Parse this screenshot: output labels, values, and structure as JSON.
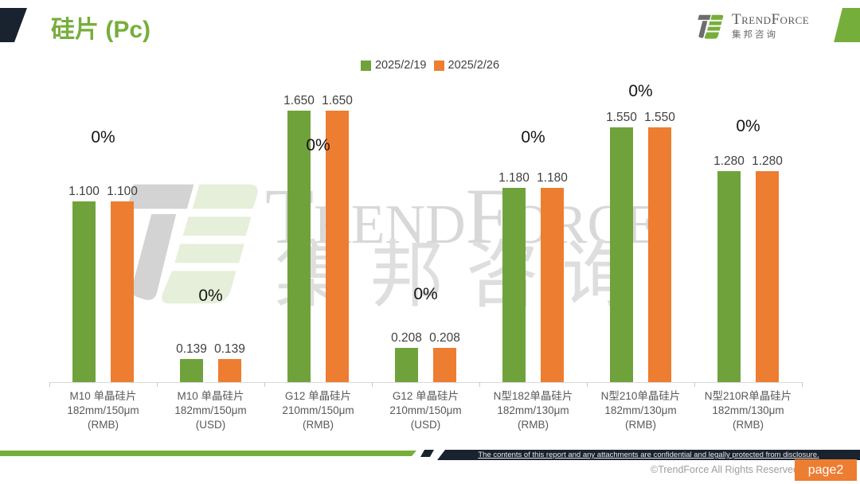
{
  "header": {
    "title": "硅片 (Pc)",
    "logo": {
      "brand": "TrendForce",
      "brand_cn": "集邦咨询"
    }
  },
  "watermark": {
    "brand": "TrendForce",
    "brand_cn": "集邦咨询"
  },
  "chart_data": {
    "type": "bar",
    "title": "硅片 (Pc)",
    "legend_position": "top",
    "grid": false,
    "ylim": [
      0,
      1.75
    ],
    "categories": [
      [
        "M10 单晶硅片",
        "182mm/150μm",
        "(RMB)"
      ],
      [
        "M10 单晶硅片",
        "182mm/150μm",
        "(USD)"
      ],
      [
        "G12 单晶硅片",
        "210mm/150μm",
        "(RMB)"
      ],
      [
        "G12 单晶硅片",
        "210mm/150μm",
        "(USD)"
      ],
      [
        "N型182单晶硅片",
        "182mm/130μm",
        "(RMB)"
      ],
      [
        "N型210单晶硅片",
        "182mm/130μm",
        "(RMB)"
      ],
      [
        "N型210R单晶硅片",
        "182mm/130μm",
        "(RMB)"
      ]
    ],
    "series": [
      {
        "name": "2025/2/19",
        "color": "#70A23C",
        "values": [
          1.1,
          0.139,
          1.65,
          0.208,
          1.18,
          1.55,
          1.28
        ]
      },
      {
        "name": "2025/2/26",
        "color": "#ED7D31",
        "values": [
          1.1,
          0.139,
          1.65,
          0.208,
          1.18,
          1.55,
          1.28
        ]
      }
    ],
    "value_label_decimals": 3,
    "pct_change_labels": [
      "0%",
      "0%",
      "0%",
      "0%",
      "0%",
      "0%",
      "0%"
    ],
    "pct_label_y": [
      174,
      373,
      184,
      371,
      174,
      116,
      160
    ]
  },
  "colors": {
    "green": "#70A23C",
    "orange": "#ED7D31",
    "navy": "#19222F",
    "title_green": "#76AE3B",
    "watermark_gray": "#D8D8D8",
    "watermark_green": "#E6EFD9"
  },
  "footer": {
    "confidential": "The contents of this report and any attachments are confidential and legally protected from disclosure.",
    "copyright": "©TrendForce All Rights Reserved",
    "page": "page2"
  }
}
